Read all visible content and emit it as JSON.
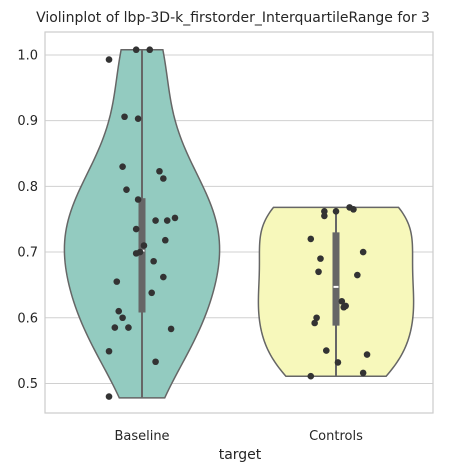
{
  "chart_data": {
    "type": "violin",
    "title": "Violinplot of lbp-3D-k_firstorder_InterquartileRange for 3",
    "xlabel": "target",
    "ylabel": "",
    "categories": [
      "Baseline",
      "Controls"
    ],
    "ylim": [
      0.455,
      1.035
    ],
    "yticks": [
      0.5,
      0.6,
      0.7,
      0.8,
      0.9,
      1.0
    ],
    "ytick_labels": [
      "0.5",
      "0.6",
      "0.7",
      "0.8",
      "0.9",
      "1.0"
    ],
    "grid": "horizontal",
    "colors": {
      "Baseline": "#93cbc0",
      "Controls": "#f7f8bb",
      "outline": "#666666",
      "box": "#666666",
      "median": "#ffffff",
      "point": "#333333",
      "grid": "#d0d0d0",
      "axes": "#cccccc"
    },
    "series": [
      {
        "category": "Baseline",
        "points": [
          {
            "x": -0.03,
            "y": 1.008
          },
          {
            "x": 0.04,
            "y": 1.008
          },
          {
            "x": -0.17,
            "y": 0.993
          },
          {
            "x": -0.09,
            "y": 0.906
          },
          {
            "x": -0.02,
            "y": 0.903
          },
          {
            "x": -0.1,
            "y": 0.83
          },
          {
            "x": 0.09,
            "y": 0.823
          },
          {
            "x": 0.11,
            "y": 0.812
          },
          {
            "x": -0.08,
            "y": 0.795
          },
          {
            "x": -0.02,
            "y": 0.78
          },
          {
            "x": 0.17,
            "y": 0.752
          },
          {
            "x": 0.07,
            "y": 0.748
          },
          {
            "x": 0.13,
            "y": 0.748
          },
          {
            "x": -0.03,
            "y": 0.735
          },
          {
            "x": 0.12,
            "y": 0.718
          },
          {
            "x": 0.01,
            "y": 0.71
          },
          {
            "x": -0.01,
            "y": 0.7
          },
          {
            "x": -0.03,
            "y": 0.698
          },
          {
            "x": 0.06,
            "y": 0.686
          },
          {
            "x": 0.11,
            "y": 0.662
          },
          {
            "x": -0.13,
            "y": 0.655
          },
          {
            "x": 0.05,
            "y": 0.638
          },
          {
            "x": -0.12,
            "y": 0.61
          },
          {
            "x": -0.1,
            "y": 0.6
          },
          {
            "x": -0.14,
            "y": 0.585
          },
          {
            "x": -0.07,
            "y": 0.585
          },
          {
            "x": 0.15,
            "y": 0.583
          },
          {
            "x": -0.17,
            "y": 0.549
          },
          {
            "x": 0.07,
            "y": 0.533
          },
          {
            "x": -0.17,
            "y": 0.48
          }
        ],
        "box": {
          "q1": 0.608,
          "median": 0.702,
          "q3": 0.782,
          "whisker_low": 0.478,
          "whisker_high": 1.008
        },
        "violin_extent": [
          0.478,
          1.008
        ]
      },
      {
        "category": "Controls",
        "points": [
          {
            "x": 0.0,
            "y": 0.762
          },
          {
            "x": 0.07,
            "y": 0.768
          },
          {
            "x": 0.09,
            "y": 0.765
          },
          {
            "x": -0.06,
            "y": 0.762
          },
          {
            "x": -0.06,
            "y": 0.755
          },
          {
            "x": -0.13,
            "y": 0.72
          },
          {
            "x": 0.14,
            "y": 0.7
          },
          {
            "x": -0.08,
            "y": 0.69
          },
          {
            "x": -0.09,
            "y": 0.67
          },
          {
            "x": 0.11,
            "y": 0.665
          },
          {
            "x": 0.03,
            "y": 0.625
          },
          {
            "x": 0.05,
            "y": 0.618
          },
          {
            "x": 0.04,
            "y": 0.616
          },
          {
            "x": -0.1,
            "y": 0.6
          },
          {
            "x": -0.11,
            "y": 0.592
          },
          {
            "x": -0.05,
            "y": 0.55
          },
          {
            "x": 0.16,
            "y": 0.544
          },
          {
            "x": 0.01,
            "y": 0.532
          },
          {
            "x": 0.14,
            "y": 0.516
          },
          {
            "x": -0.13,
            "y": 0.511
          }
        ],
        "box": {
          "q1": 0.588,
          "median": 0.647,
          "q3": 0.73,
          "whisker_low": 0.511,
          "whisker_high": 0.768
        },
        "violin_extent": [
          0.511,
          0.768
        ]
      }
    ]
  }
}
